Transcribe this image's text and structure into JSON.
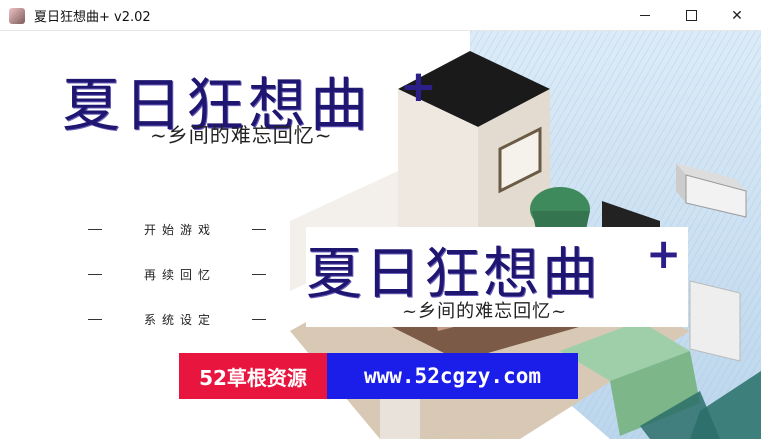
{
  "window": {
    "title": "夏日狂想曲+ v2.02",
    "icon": "app-icon",
    "controls": {
      "minimize": "minimize-icon",
      "maximize": "maximize-icon",
      "close": "close-icon",
      "close_glyph": "✕"
    }
  },
  "logo": {
    "title": "夏日狂想曲",
    "plus": "+",
    "subtitle": "~乡间的难忘回忆~"
  },
  "menu": [
    {
      "label": "开始游戏"
    },
    {
      "label": "再续回忆"
    },
    {
      "label": "系统设定"
    }
  ],
  "overlay_logo": {
    "title": "夏日狂想曲",
    "plus": "+",
    "subtitle": "~乡间的难忘回忆~"
  },
  "banner": {
    "site_name": "52草根资源",
    "url": "www.52cgzy.com",
    "red": "#e8163f",
    "blue": "#1b1ee8"
  },
  "colors": {
    "logo_text": "#1e1670",
    "sky": "#cfe2f2"
  }
}
